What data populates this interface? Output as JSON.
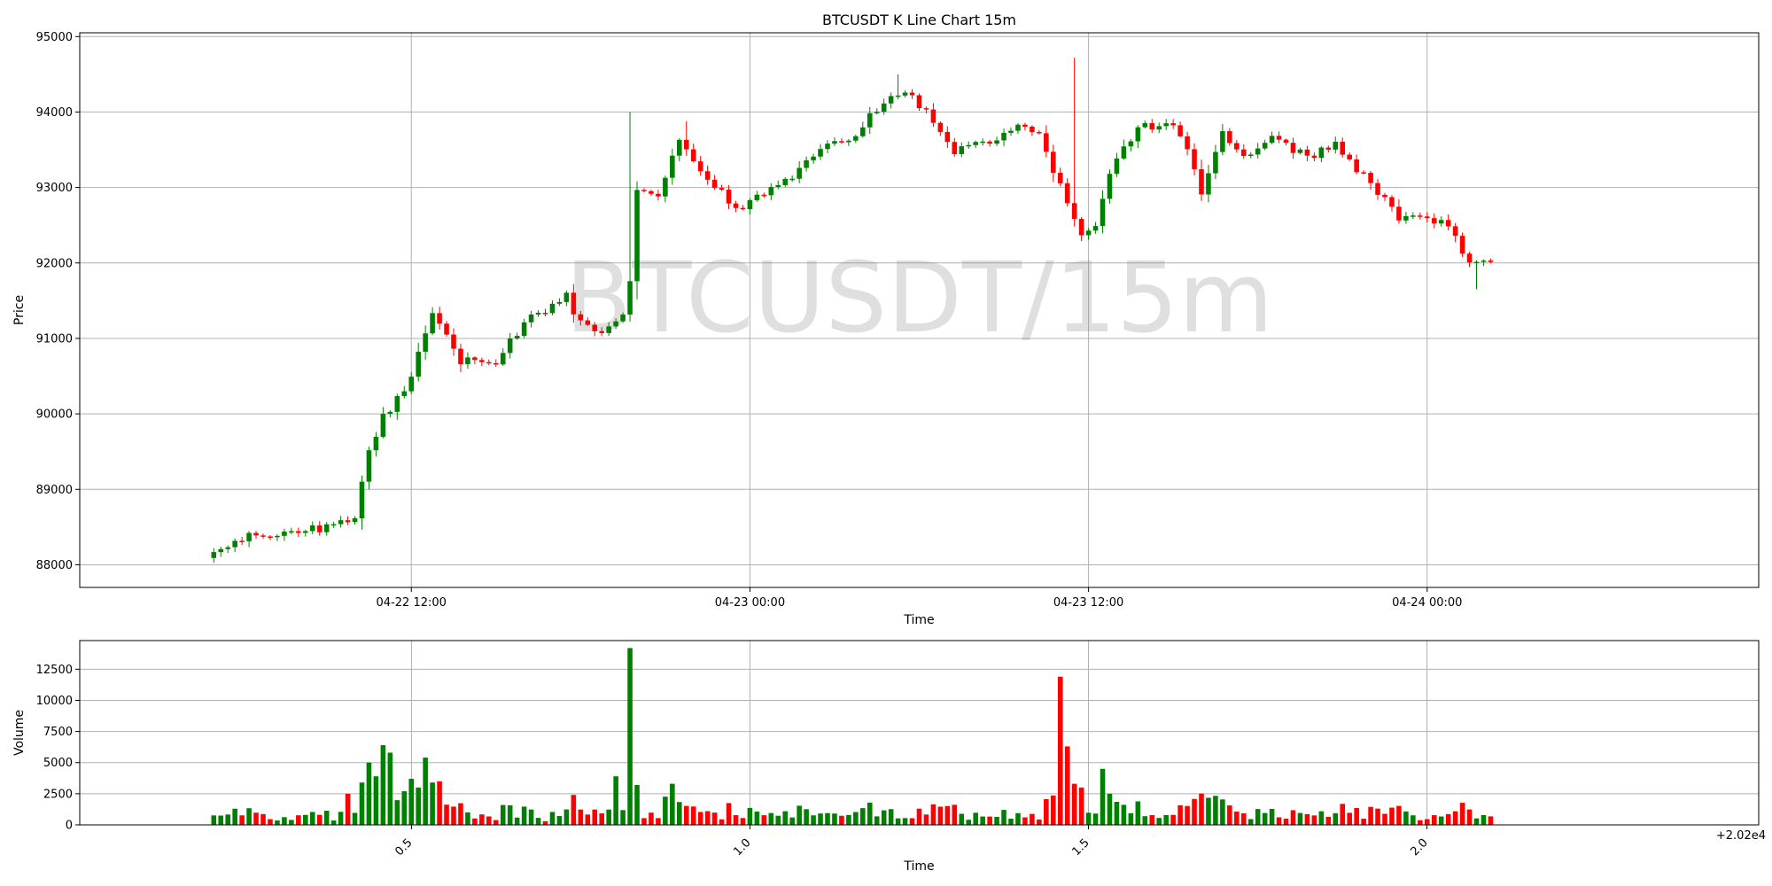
{
  "chart_data": [
    {
      "type": "candlestick",
      "title": "BTCUSDT K Line Chart 15m",
      "watermark": "BTCUSDT/15m",
      "xlabel": "Time",
      "ylabel": "Price",
      "ylim": [
        87700,
        95050
      ],
      "yticks": [
        88000,
        89000,
        90000,
        91000,
        92000,
        93000,
        94000,
        95000
      ],
      "xlim": [
        "2025-04-22 00:15",
        "2025-04-24 11:45"
      ],
      "xticks": [
        {
          "value": "2025-04-22 12:00",
          "label": "04-22 12:00"
        },
        {
          "value": "2025-04-23 00:00",
          "label": "04-23 00:00"
        },
        {
          "value": "2025-04-23 12:00",
          "label": "04-23 12:00"
        },
        {
          "value": "2025-04-24 00:00",
          "label": "04-24 00:00"
        }
      ],
      "grid": true,
      "interval_minutes": 15,
      "first_candle": "2025-04-22 05:00",
      "colors": {
        "up": "#008000",
        "down": "#ff0000"
      },
      "waypoints": [
        [
          0,
          88150
        ],
        [
          5,
          88400
        ],
        [
          12,
          88450
        ],
        [
          16,
          88500
        ],
        [
          20,
          88650
        ],
        [
          22,
          89500
        ],
        [
          24,
          89950
        ],
        [
          27,
          90300
        ],
        [
          31,
          91300
        ],
        [
          35,
          90700
        ],
        [
          40,
          90700
        ],
        [
          44,
          91200
        ],
        [
          50,
          91550
        ],
        [
          52,
          91200
        ],
        [
          56,
          91100
        ],
        [
          58,
          91350
        ],
        [
          59,
          91750
        ],
        [
          60,
          92950
        ],
        [
          63,
          92900
        ],
        [
          66,
          93650
        ],
        [
          70,
          93150
        ],
        [
          74,
          92700
        ],
        [
          78,
          92950
        ],
        [
          82,
          93100
        ],
        [
          86,
          93550
        ],
        [
          90,
          93600
        ],
        [
          94,
          94050
        ],
        [
          98,
          94300
        ],
        [
          102,
          93900
        ],
        [
          105,
          93500
        ],
        [
          110,
          93600
        ],
        [
          114,
          93800
        ],
        [
          117,
          93700
        ],
        [
          119,
          93250
        ],
        [
          123,
          92400
        ],
        [
          125,
          92500
        ],
        [
          127,
          93200
        ],
        [
          131,
          93800
        ],
        [
          136,
          93850
        ],
        [
          138,
          93500
        ],
        [
          140,
          92950
        ],
        [
          143,
          93700
        ],
        [
          147,
          93400
        ],
        [
          150,
          93650
        ],
        [
          155,
          93400
        ],
        [
          159,
          93550
        ],
        [
          164,
          93050
        ],
        [
          168,
          92600
        ],
        [
          175,
          92500
        ],
        [
          178,
          92000
        ],
        [
          181,
          92000
        ]
      ]
    },
    {
      "type": "bar",
      "xlabel": "Time",
      "ylabel": "Volume",
      "ylim": [
        0,
        14800
      ],
      "yticks": [
        0,
        2500,
        5000,
        7500,
        10000,
        12500
      ],
      "xlim": [
        20200.01,
        20202.49
      ],
      "xticks": [
        {
          "value": 20200.5,
          "label": "0.5"
        },
        {
          "value": 20201.0,
          "label": "1.0"
        },
        {
          "value": 20201.5,
          "label": "1.5"
        },
        {
          "value": 20202.0,
          "label": "2.0"
        }
      ],
      "offset_label": "+2.02e4",
      "grid": true,
      "spikes": [
        {
          "index": 19,
          "value": 2500
        },
        {
          "index": 21,
          "value": 3400
        },
        {
          "index": 22,
          "value": 5000
        },
        {
          "index": 23,
          "value": 3900
        },
        {
          "index": 24,
          "value": 6400
        },
        {
          "index": 25,
          "value": 5800
        },
        {
          "index": 27,
          "value": 2700
        },
        {
          "index": 28,
          "value": 3700
        },
        {
          "index": 29,
          "value": 3000
        },
        {
          "index": 30,
          "value": 5400
        },
        {
          "index": 31,
          "value": 3400
        },
        {
          "index": 32,
          "value": 3500
        },
        {
          "index": 57,
          "value": 3900
        },
        {
          "index": 59,
          "value": 14200
        },
        {
          "index": 60,
          "value": 3200
        },
        {
          "index": 65,
          "value": 3300
        },
        {
          "index": 120,
          "value": 11900
        },
        {
          "index": 121,
          "value": 6300
        },
        {
          "index": 122,
          "value": 3300
        },
        {
          "index": 123,
          "value": 3000
        },
        {
          "index": 126,
          "value": 4500
        },
        {
          "index": 127,
          "value": 2500
        }
      ]
    }
  ]
}
